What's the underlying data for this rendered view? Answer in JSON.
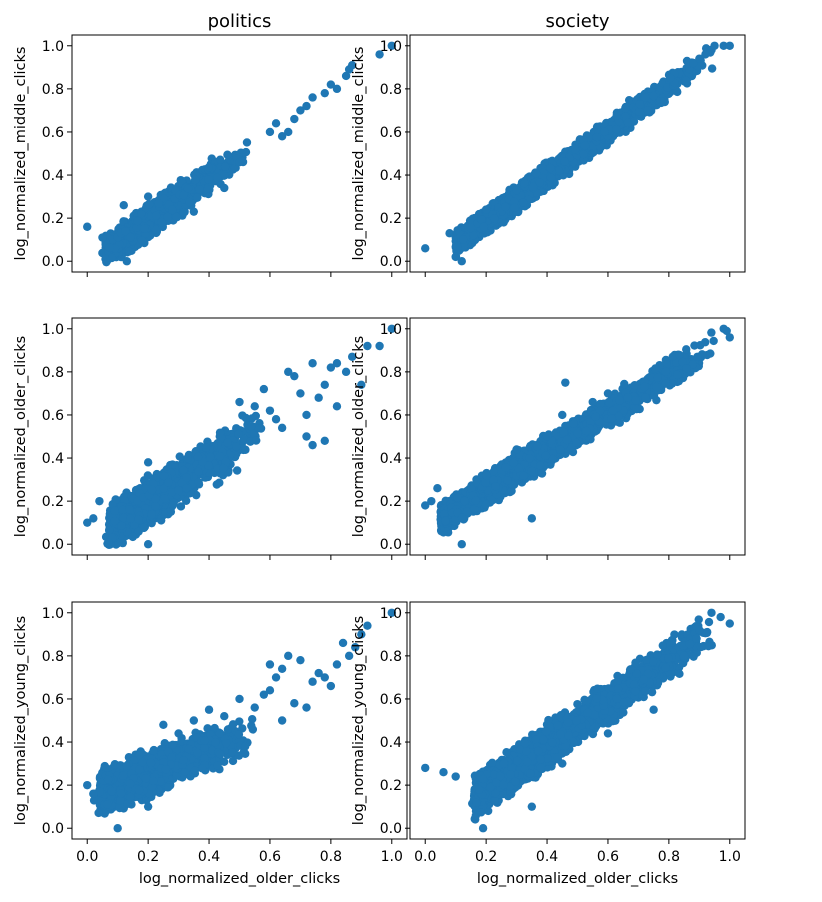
{
  "figure": {
    "marker_color": "#1f77b4",
    "axes_color": "#000000",
    "background": "#ffffff"
  },
  "chart_data": [
    {
      "type": "scatter",
      "row": 0,
      "col": 0,
      "title": "politics",
      "xlabel": "",
      "ylabel": "log_normalized_middle_clicks",
      "xlim": [
        -0.05,
        1.05
      ],
      "ylim": [
        -0.05,
        1.05
      ],
      "xticks": [
        0.0,
        0.2,
        0.4,
        0.6,
        0.8,
        1.0
      ],
      "xticklabels_visible": false,
      "yticks": [
        0.0,
        0.2,
        0.4,
        0.6,
        0.8,
        1.0
      ],
      "yticklabels": [
        "0.0",
        "0.2",
        "0.4",
        "0.6",
        "0.8",
        "1.0"
      ],
      "grid": false,
      "cloud": {
        "n": 1400,
        "x_min": 0.04,
        "x_max": 0.55,
        "x_peak": 0.15,
        "slope": 0.98,
        "intercept": -0.01,
        "noise": 0.035
      },
      "points": [
        [
          0.0,
          0.16
        ],
        [
          0.05,
          0.11
        ],
        [
          0.06,
          0.01
        ],
        [
          0.12,
          0.26
        ],
        [
          0.13,
          0.0
        ],
        [
          0.2,
          0.3
        ],
        [
          0.35,
          0.23
        ],
        [
          0.45,
          0.34
        ],
        [
          0.5,
          0.46
        ],
        [
          0.6,
          0.6
        ],
        [
          0.62,
          0.64
        ],
        [
          0.64,
          0.58
        ],
        [
          0.66,
          0.6
        ],
        [
          0.68,
          0.66
        ],
        [
          0.7,
          0.7
        ],
        [
          0.72,
          0.72
        ],
        [
          0.74,
          0.76
        ],
        [
          0.78,
          0.78
        ],
        [
          0.8,
          0.82
        ],
        [
          0.82,
          0.8
        ],
        [
          0.85,
          0.86
        ],
        [
          0.86,
          0.89
        ],
        [
          0.87,
          0.91
        ],
        [
          0.96,
          0.96
        ],
        [
          1.0,
          1.0
        ]
      ]
    },
    {
      "type": "scatter",
      "row": 0,
      "col": 1,
      "title": "society",
      "xlabel": "",
      "ylabel": "log_normalized_middle_clicks",
      "xlim": [
        -0.05,
        1.05
      ],
      "ylim": [
        -0.05,
        1.05
      ],
      "xticks": [
        0.0,
        0.2,
        0.4,
        0.6,
        0.8,
        1.0
      ],
      "xticklabels_visible": false,
      "yticks": [
        0.0,
        0.2,
        0.4,
        0.6,
        0.8,
        1.0
      ],
      "yticklabels": [
        "0.0",
        "0.2",
        "0.4",
        "0.6",
        "0.8",
        "1.0"
      ],
      "grid": false,
      "cloud": {
        "n": 2600,
        "x_min": 0.08,
        "x_max": 0.95,
        "x_peak": 0.3,
        "slope": 1.04,
        "intercept": -0.02,
        "noise": 0.028
      },
      "points": [
        [
          0.0,
          0.06
        ],
        [
          0.1,
          0.02
        ],
        [
          0.08,
          0.13
        ],
        [
          0.12,
          0.0
        ],
        [
          0.2,
          0.24
        ],
        [
          0.3,
          0.33
        ],
        [
          0.88,
          0.92
        ],
        [
          0.9,
          0.94
        ],
        [
          0.92,
          0.96
        ],
        [
          0.94,
          0.98
        ],
        [
          0.95,
          1.0
        ],
        [
          0.98,
          1.0
        ],
        [
          1.0,
          1.0
        ]
      ]
    },
    {
      "type": "scatter",
      "row": 1,
      "col": 0,
      "title": "",
      "xlabel": "",
      "ylabel": "log_normalized_older_clicks",
      "xlim": [
        -0.05,
        1.05
      ],
      "ylim": [
        -0.05,
        1.05
      ],
      "xticks": [
        0.0,
        0.2,
        0.4,
        0.6,
        0.8,
        1.0
      ],
      "xticklabels_visible": false,
      "yticks": [
        0.0,
        0.2,
        0.4,
        0.6,
        0.8,
        1.0
      ],
      "yticklabels": [
        "0.0",
        "0.2",
        "0.4",
        "0.6",
        "0.8",
        "1.0"
      ],
      "grid": false,
      "cloud": {
        "n": 1500,
        "x_min": 0.05,
        "x_max": 0.58,
        "x_peak": 0.16,
        "slope": 0.95,
        "intercept": 0.0,
        "noise": 0.05
      },
      "points": [
        [
          0.0,
          0.1
        ],
        [
          0.02,
          0.12
        ],
        [
          0.04,
          0.2
        ],
        [
          0.2,
          0.38
        ],
        [
          0.2,
          0.0
        ],
        [
          0.3,
          0.25
        ],
        [
          0.5,
          0.66
        ],
        [
          0.55,
          0.64
        ],
        [
          0.58,
          0.72
        ],
        [
          0.6,
          0.62
        ],
        [
          0.62,
          0.58
        ],
        [
          0.64,
          0.54
        ],
        [
          0.66,
          0.8
        ],
        [
          0.68,
          0.78
        ],
        [
          0.7,
          0.7
        ],
        [
          0.72,
          0.6
        ],
        [
          0.72,
          0.5
        ],
        [
          0.74,
          0.84
        ],
        [
          0.74,
          0.46
        ],
        [
          0.76,
          0.68
        ],
        [
          0.78,
          0.74
        ],
        [
          0.78,
          0.48
        ],
        [
          0.8,
          0.82
        ],
        [
          0.82,
          0.84
        ],
        [
          0.82,
          0.64
        ],
        [
          0.85,
          0.8
        ],
        [
          0.87,
          0.87
        ],
        [
          0.9,
          0.74
        ],
        [
          0.92,
          0.92
        ],
        [
          0.96,
          0.92
        ],
        [
          1.0,
          1.0
        ]
      ]
    },
    {
      "type": "scatter",
      "row": 1,
      "col": 1,
      "title": "",
      "xlabel": "",
      "ylabel": "log_normalized_older_clicks",
      "xlim": [
        -0.05,
        1.05
      ],
      "ylim": [
        -0.05,
        1.05
      ],
      "xticks": [
        0.0,
        0.2,
        0.4,
        0.6,
        0.8,
        1.0
      ],
      "xticklabels_visible": false,
      "yticks": [
        0.0,
        0.2,
        0.4,
        0.6,
        0.8,
        1.0
      ],
      "yticklabels": [
        "0.0",
        "0.2",
        "0.4",
        "0.6",
        "0.8",
        "1.0"
      ],
      "grid": false,
      "cloud": {
        "n": 2600,
        "x_min": 0.03,
        "x_max": 0.97,
        "x_peak": 0.3,
        "slope": 0.9,
        "intercept": 0.07,
        "noise": 0.035
      },
      "points": [
        [
          0.0,
          0.18
        ],
        [
          0.02,
          0.2
        ],
        [
          0.04,
          0.26
        ],
        [
          0.12,
          0.0
        ],
        [
          0.2,
          0.32
        ],
        [
          0.3,
          0.44
        ],
        [
          0.35,
          0.12
        ],
        [
          0.4,
          0.5
        ],
        [
          0.45,
          0.6
        ],
        [
          0.46,
          0.75
        ],
        [
          0.55,
          0.66
        ],
        [
          0.6,
          0.7
        ],
        [
          0.98,
          1.0
        ],
        [
          0.99,
          0.99
        ],
        [
          1.0,
          0.96
        ]
      ]
    },
    {
      "type": "scatter",
      "row": 2,
      "col": 0,
      "title": "",
      "xlabel": "log_normalized_older_clicks",
      "ylabel": "log_normalized_young_clicks",
      "xlim": [
        -0.05,
        1.05
      ],
      "ylim": [
        -0.05,
        1.05
      ],
      "xticks": [
        0.0,
        0.2,
        0.4,
        0.6,
        0.8,
        1.0
      ],
      "xticklabels": [
        "0.0",
        "0.2",
        "0.4",
        "0.6",
        "0.8",
        "1.0"
      ],
      "yticks": [
        0.0,
        0.2,
        0.4,
        0.6,
        0.8,
        1.0
      ],
      "yticklabels": [
        "0.0",
        "0.2",
        "0.4",
        "0.6",
        "0.8",
        "1.0"
      ],
      "grid": false,
      "cloud": {
        "n": 1500,
        "x_min": 0.02,
        "x_max": 0.55,
        "x_peak": 0.15,
        "slope": 0.55,
        "intercept": 0.14,
        "noise": 0.05
      },
      "points": [
        [
          0.0,
          0.2
        ],
        [
          0.02,
          0.16
        ],
        [
          0.1,
          0.0
        ],
        [
          0.2,
          0.1
        ],
        [
          0.25,
          0.48
        ],
        [
          0.3,
          0.44
        ],
        [
          0.35,
          0.5
        ],
        [
          0.4,
          0.55
        ],
        [
          0.45,
          0.52
        ],
        [
          0.5,
          0.6
        ],
        [
          0.55,
          0.56
        ],
        [
          0.58,
          0.62
        ],
        [
          0.6,
          0.64
        ],
        [
          0.62,
          0.7
        ],
        [
          0.64,
          0.74
        ],
        [
          0.6,
          0.76
        ],
        [
          0.64,
          0.5
        ],
        [
          0.66,
          0.8
        ],
        [
          0.68,
          0.58
        ],
        [
          0.7,
          0.78
        ],
        [
          0.72,
          0.56
        ],
        [
          0.74,
          0.68
        ],
        [
          0.76,
          0.72
        ],
        [
          0.78,
          0.7
        ],
        [
          0.8,
          0.66
        ],
        [
          0.82,
          0.76
        ],
        [
          0.84,
          0.86
        ],
        [
          0.86,
          0.8
        ],
        [
          0.88,
          0.84
        ],
        [
          0.9,
          0.9
        ],
        [
          0.92,
          0.94
        ],
        [
          1.0,
          1.0
        ]
      ]
    },
    {
      "type": "scatter",
      "row": 2,
      "col": 1,
      "title": "",
      "xlabel": "log_normalized_older_clicks",
      "ylabel": "log_normalized_young_clicks",
      "xlim": [
        -0.05,
        1.05
      ],
      "ylim": [
        -0.05,
        1.05
      ],
      "xticks": [
        0.0,
        0.2,
        0.4,
        0.6,
        0.8,
        1.0
      ],
      "xticklabels": [
        "0.0",
        "0.2",
        "0.4",
        "0.6",
        "0.8",
        "1.0"
      ],
      "yticks": [
        0.0,
        0.2,
        0.4,
        0.6,
        0.8,
        1.0
      ],
      "yticklabels": [
        "0.0",
        "0.2",
        "0.4",
        "0.6",
        "0.8",
        "1.0"
      ],
      "grid": false,
      "cloud": {
        "n": 2600,
        "x_min": 0.14,
        "x_max": 0.95,
        "x_peak": 0.35,
        "slope": 1.0,
        "intercept": -0.02,
        "noise": 0.045
      },
      "points": [
        [
          0.0,
          0.28
        ],
        [
          0.06,
          0.26
        ],
        [
          0.1,
          0.24
        ],
        [
          0.19,
          0.0
        ],
        [
          0.35,
          0.1
        ],
        [
          0.45,
          0.3
        ],
        [
          0.6,
          0.44
        ],
        [
          0.75,
          0.55
        ],
        [
          0.85,
          0.8
        ],
        [
          0.9,
          0.92
        ],
        [
          0.94,
          1.0
        ],
        [
          0.97,
          0.98
        ],
        [
          1.0,
          0.95
        ]
      ]
    }
  ]
}
